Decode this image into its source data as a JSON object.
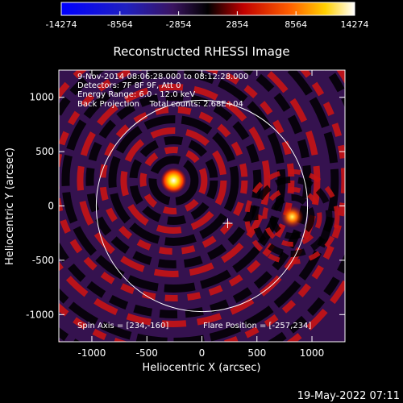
{
  "chart_data": {
    "type": "heatmap",
    "title": "Reconstructed RHESSI Image",
    "xlabel": "Heliocentric X (arcsec)",
    "ylabel": "Heliocentric Y (arcsec)",
    "xlim": [
      -1300,
      1300
    ],
    "ylim": [
      -1250,
      1250
    ],
    "xticks": [
      -1000,
      -500,
      0,
      500,
      1000
    ],
    "yticks": [
      -1000,
      -500,
      0,
      500,
      1000
    ],
    "colorbar": {
      "ticks": [
        -14274,
        -8564,
        -2854,
        2854,
        8564,
        14274
      ],
      "min": -14274,
      "max": 14274
    },
    "annotations": [
      "9-Nov-2014 08:06:28.000 to 08:12:28.000",
      "Detectors: 7F 8F 9F, Att 0",
      "Energy Range: 6.0 - 12.0 keV",
      "Back Projection    Total counts: 2.68E+04"
    ],
    "spin_axis_label": "Spin Axis = [234,-160]",
    "flare_position_label": "Flare Position = [-257,234]",
    "spin_axis": [
      234,
      -160
    ],
    "flare_position": [
      -257,
      234
    ],
    "secondary_source": [
      820,
      -100
    ],
    "solar_limb_radius": 960,
    "timestamp": "19-May-2022 07:11"
  }
}
